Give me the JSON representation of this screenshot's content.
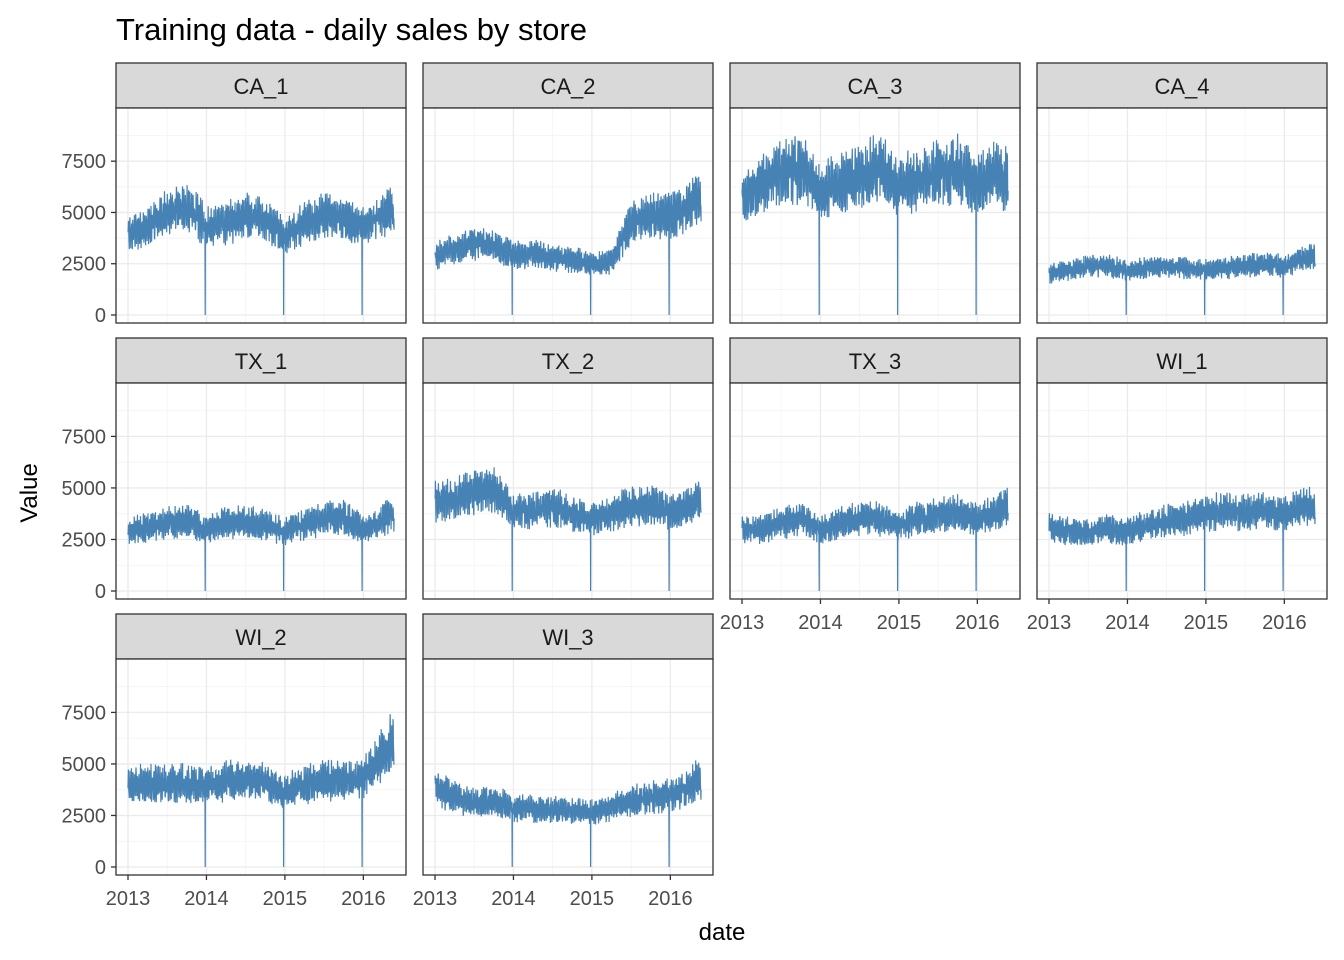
{
  "chart_data": {
    "type": "line",
    "title": "Training data - daily sales by store",
    "xlabel": "date",
    "ylabel": "Value",
    "series_color": "#4682B4",
    "xlim": [
      "2013-01-01",
      "2016-05-22"
    ],
    "ylim": [
      0,
      9800
    ],
    "x_ticks": [
      "2013",
      "2014",
      "2015",
      "2016"
    ],
    "y_ticks": [
      "0",
      "2500",
      "5000",
      "7500"
    ],
    "x_tick_values": [
      2013,
      2014,
      2015,
      2016
    ],
    "y_tick_values": [
      0,
      2500,
      5000,
      7500
    ],
    "grid": true,
    "facets": [
      "CA_1",
      "CA_2",
      "CA_3",
      "CA_4",
      "TX_1",
      "TX_2",
      "TX_3",
      "WI_1",
      "WI_2",
      "WI_3"
    ],
    "series": [
      {
        "name": "CA_1",
        "x": [
          "2013-01",
          "2013-04",
          "2013-07",
          "2013-10",
          "2014-01",
          "2014-04",
          "2014-07",
          "2014-10",
          "2015-01",
          "2015-04",
          "2015-07",
          "2015-10",
          "2016-01",
          "2016-04",
          "2016-05"
        ],
        "y": [
          3900,
          4300,
          5000,
          5300,
          4300,
          4500,
          4800,
          4600,
          3900,
          4500,
          4800,
          4700,
          4300,
          5000,
          5100
        ],
        "dips": [
          {
            "x": "2013-12-25",
            "y": 0
          },
          {
            "x": "2014-12-25",
            "y": 0
          },
          {
            "x": "2015-12-25",
            "y": 0
          }
        ]
      },
      {
        "name": "CA_2",
        "x": [
          "2013-01",
          "2013-04",
          "2013-07",
          "2013-10",
          "2014-01",
          "2014-04",
          "2014-07",
          "2014-10",
          "2015-01",
          "2015-04",
          "2015-07",
          "2015-10",
          "2016-01",
          "2016-04",
          "2016-05"
        ],
        "y": [
          2900,
          3200,
          3500,
          3400,
          2900,
          3000,
          2800,
          2700,
          2500,
          2600,
          4500,
          4800,
          4800,
          5200,
          5600
        ],
        "dips": [
          {
            "x": "2013-12-25",
            "y": 0
          },
          {
            "x": "2014-12-25",
            "y": 0
          },
          {
            "x": "2015-12-25",
            "y": 0
          }
        ]
      },
      {
        "name": "CA_3",
        "x": [
          "2013-01",
          "2013-04",
          "2013-07",
          "2013-10",
          "2014-01",
          "2014-04",
          "2014-07",
          "2014-10",
          "2015-01",
          "2015-04",
          "2015-07",
          "2015-10",
          "2016-01",
          "2016-04",
          "2016-05"
        ],
        "y": [
          5600,
          6300,
          7000,
          7100,
          6000,
          6400,
          6700,
          7200,
          6300,
          6600,
          6900,
          7100,
          6300,
          6900,
          6700
        ],
        "dips": [
          {
            "x": "2013-12-25",
            "y": 0
          },
          {
            "x": "2014-12-25",
            "y": 0
          },
          {
            "x": "2015-12-25",
            "y": 0
          }
        ]
      },
      {
        "name": "CA_4",
        "x": [
          "2013-01",
          "2013-04",
          "2013-07",
          "2013-10",
          "2014-01",
          "2014-04",
          "2014-07",
          "2014-10",
          "2015-01",
          "2015-04",
          "2015-07",
          "2015-10",
          "2016-01",
          "2016-04",
          "2016-05"
        ],
        "y": [
          2000,
          2200,
          2400,
          2400,
          2200,
          2300,
          2400,
          2300,
          2200,
          2300,
          2400,
          2500,
          2400,
          2700,
          2900
        ],
        "dips": [
          {
            "x": "2013-12-25",
            "y": 0
          },
          {
            "x": "2014-12-25",
            "y": 0
          },
          {
            "x": "2015-12-25",
            "y": 0
          }
        ]
      },
      {
        "name": "TX_1",
        "x": [
          "2013-01",
          "2013-04",
          "2013-07",
          "2013-10",
          "2014-01",
          "2014-04",
          "2014-07",
          "2014-10",
          "2015-01",
          "2015-04",
          "2015-07",
          "2015-10",
          "2016-01",
          "2016-04",
          "2016-05"
        ],
        "y": [
          2900,
          3100,
          3300,
          3400,
          3000,
          3300,
          3400,
          3200,
          2900,
          3200,
          3500,
          3600,
          3000,
          3400,
          3700
        ],
        "dips": [
          {
            "x": "2013-12-25",
            "y": 0
          },
          {
            "x": "2014-12-25",
            "y": 0
          },
          {
            "x": "2015-12-25",
            "y": 0
          }
        ]
      },
      {
        "name": "TX_2",
        "x": [
          "2013-01",
          "2013-04",
          "2013-07",
          "2013-10",
          "2014-01",
          "2014-04",
          "2014-07",
          "2014-10",
          "2015-01",
          "2015-04",
          "2015-07",
          "2015-10",
          "2016-01",
          "2016-04",
          "2016-05"
        ],
        "y": [
          4300,
          4500,
          4800,
          4900,
          4000,
          3900,
          4100,
          3800,
          3500,
          3800,
          4100,
          4200,
          3800,
          4100,
          4400
        ],
        "dips": [
          {
            "x": "2013-12-25",
            "y": 0
          },
          {
            "x": "2014-12-25",
            "y": 0
          },
          {
            "x": "2015-12-25",
            "y": 0
          }
        ]
      },
      {
        "name": "TX_3",
        "x": [
          "2013-01",
          "2013-04",
          "2013-07",
          "2013-10",
          "2014-01",
          "2014-04",
          "2014-07",
          "2014-10",
          "2015-01",
          "2015-04",
          "2015-07",
          "2015-10",
          "2016-01",
          "2016-04",
          "2016-05"
        ],
        "y": [
          2900,
          3000,
          3300,
          3500,
          3000,
          3300,
          3500,
          3500,
          3200,
          3500,
          3700,
          3800,
          3500,
          3800,
          4100
        ],
        "dips": [
          {
            "x": "2013-12-25",
            "y": 0
          },
          {
            "x": "2014-12-25",
            "y": 0
          },
          {
            "x": "2015-12-25",
            "y": 0
          }
        ]
      },
      {
        "name": "WI_1",
        "x": [
          "2013-01",
          "2013-04",
          "2013-07",
          "2013-10",
          "2014-01",
          "2014-04",
          "2014-07",
          "2014-10",
          "2015-01",
          "2015-04",
          "2015-07",
          "2015-10",
          "2016-01",
          "2016-04",
          "2016-05"
        ],
        "y": [
          3100,
          2900,
          2800,
          3000,
          2900,
          3200,
          3400,
          3500,
          3800,
          3900,
          3800,
          3900,
          3700,
          4100,
          4200
        ],
        "dips": [
          {
            "x": "2013-12-25",
            "y": 0
          },
          {
            "x": "2014-12-25",
            "y": 0
          },
          {
            "x": "2015-12-25",
            "y": 0
          }
        ]
      },
      {
        "name": "WI_2",
        "x": [
          "2013-01",
          "2013-04",
          "2013-07",
          "2013-10",
          "2014-01",
          "2014-04",
          "2014-07",
          "2014-10",
          "2015-01",
          "2015-04",
          "2015-07",
          "2015-10",
          "2016-01",
          "2016-04",
          "2016-05"
        ],
        "y": [
          3900,
          4100,
          4000,
          4100,
          3900,
          4200,
          4200,
          4100,
          3700,
          4000,
          4200,
          4200,
          4300,
          5500,
          6000
        ],
        "dips": [
          {
            "x": "2013-12-25",
            "y": 0
          },
          {
            "x": "2014-12-25",
            "y": 0
          },
          {
            "x": "2015-12-25",
            "y": 0
          }
        ]
      },
      {
        "name": "WI_3",
        "x": [
          "2013-01",
          "2013-04",
          "2013-07",
          "2013-10",
          "2014-01",
          "2014-04",
          "2014-07",
          "2014-10",
          "2015-01",
          "2015-04",
          "2015-07",
          "2015-10",
          "2016-01",
          "2016-04",
          "2016-05"
        ],
        "y": [
          3900,
          3400,
          3100,
          3200,
          2900,
          2800,
          2800,
          2700,
          2700,
          2900,
          3200,
          3400,
          3500,
          3900,
          4200
        ],
        "dips": [
          {
            "x": "2013-12-25",
            "y": 0
          },
          {
            "x": "2014-12-25",
            "y": 0
          },
          {
            "x": "2015-12-25",
            "y": 0
          }
        ]
      }
    ]
  }
}
